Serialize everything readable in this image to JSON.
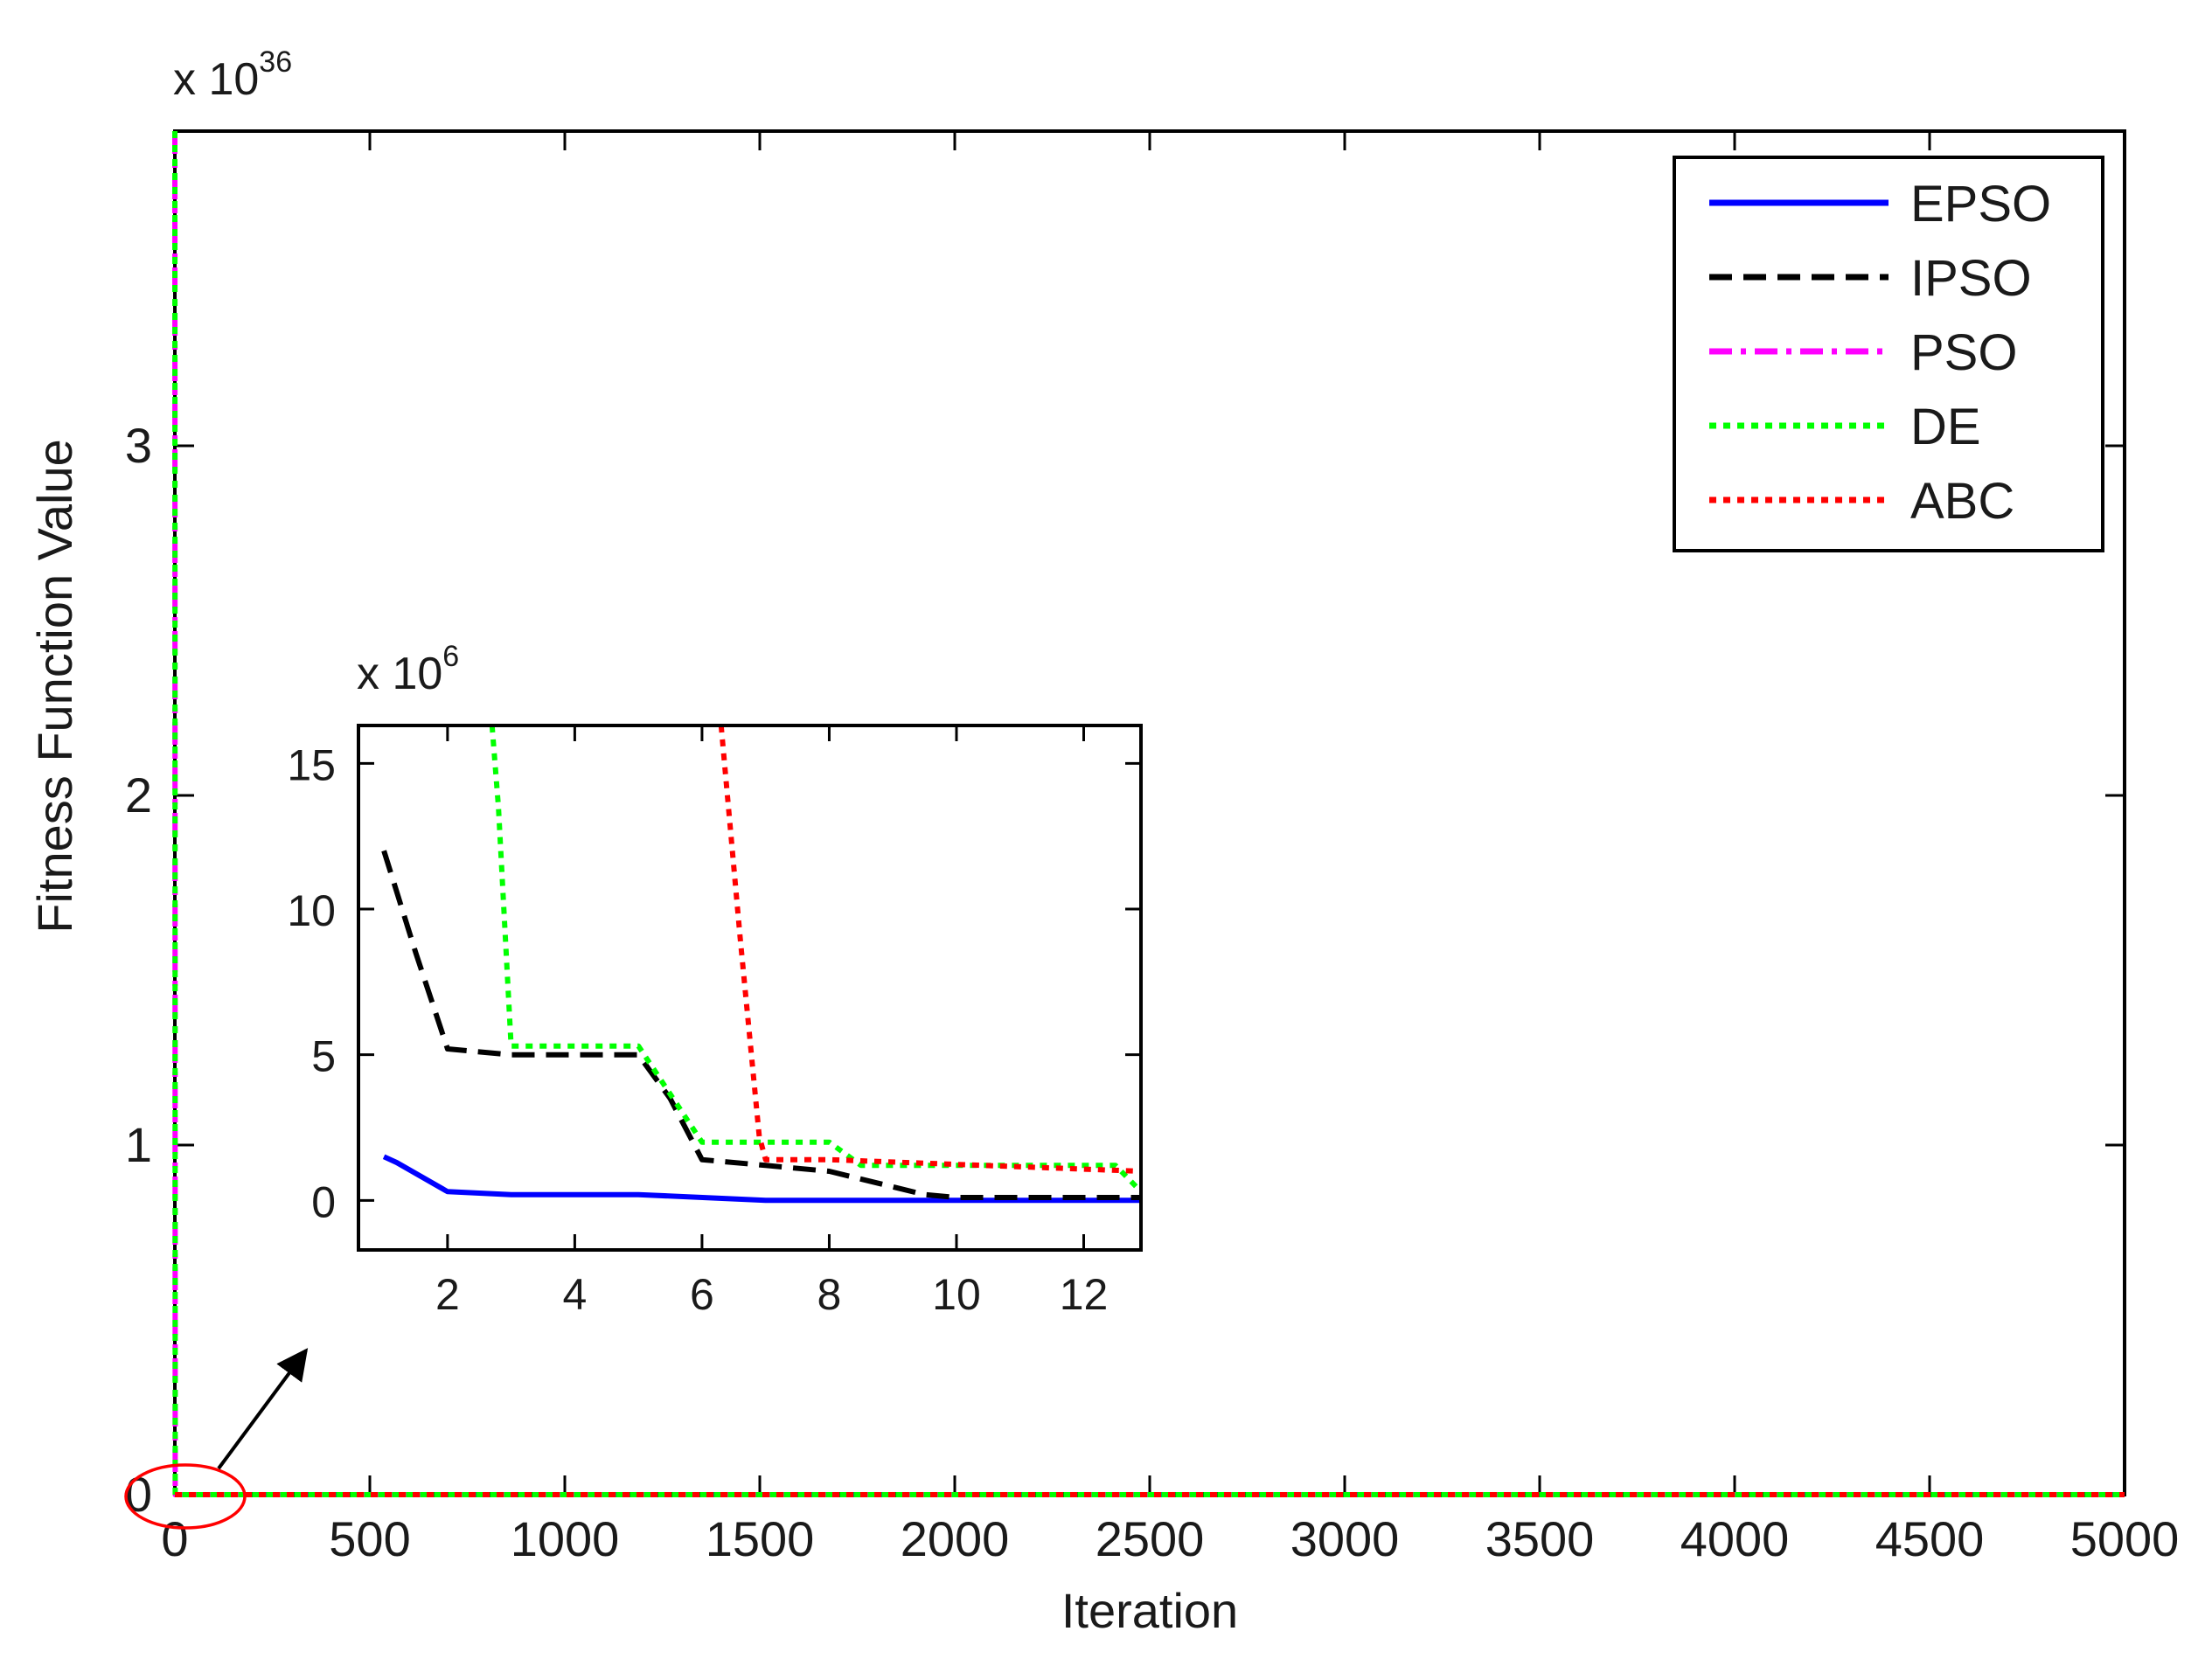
{
  "chart_data": [
    {
      "type": "line",
      "role": "main",
      "xlabel": "Iteration",
      "ylabel": "Fitness Function Value",
      "y_multiplier_base": "x 10",
      "y_multiplier_exponent": "36",
      "xlim": [
        0,
        5000
      ],
      "ylim": [
        0,
        3.9
      ],
      "x_ticks": [
        0,
        500,
        1000,
        1500,
        2000,
        2500,
        3000,
        3500,
        4000,
        4500,
        5000
      ],
      "x_tick_labels": [
        "0",
        "500",
        "1000",
        "1500",
        "2000",
        "2500",
        "3000",
        "3500",
        "4000",
        "4500",
        "5000"
      ],
      "y_ticks": [
        0,
        1,
        2,
        3
      ],
      "y_tick_labels": [
        "0",
        "1",
        "2",
        "3"
      ],
      "legend_position": "top-right",
      "series": [
        {
          "name": "EPSO",
          "color": "#0000ff",
          "style": "solid",
          "x": [
            0,
            5000
          ],
          "y": [
            0,
            0
          ]
        },
        {
          "name": "IPSO",
          "color": "#000000",
          "style": "dashed",
          "x": [
            0,
            5000
          ],
          "y": [
            0,
            0
          ]
        },
        {
          "name": "PSO",
          "color": "#ff00ff",
          "style": "dashdot",
          "x": [
            0,
            1,
            5000
          ],
          "y": [
            3.9,
            0,
            0
          ]
        },
        {
          "name": "DE",
          "color": "#00ff00",
          "style": "dotted",
          "x": [
            0,
            1,
            5000
          ],
          "y": [
            3.9,
            0,
            0
          ]
        },
        {
          "name": "ABC",
          "color": "#ff0000",
          "style": "dotted",
          "x": [
            0,
            5000
          ],
          "y": [
            0,
            0
          ]
        }
      ],
      "annotations": [
        "red ellipse around origin",
        "arrow pointing to zoomed inset"
      ]
    },
    {
      "type": "line",
      "role": "inset",
      "y_multiplier_base": "x 10",
      "y_multiplier_exponent": "6",
      "xlim": [
        0.6,
        12.9
      ],
      "ylim": [
        -1.7,
        16.3
      ],
      "x_ticks": [
        2,
        4,
        6,
        8,
        10,
        12
      ],
      "x_tick_labels": [
        "2",
        "4",
        "6",
        "8",
        "10",
        "12"
      ],
      "y_ticks": [
        0,
        5,
        10,
        15
      ],
      "y_tick_labels": [
        "0",
        "5",
        "10",
        "15"
      ],
      "series": [
        {
          "name": "EPSO",
          "color": "#0000ff",
          "style": "solid",
          "x": [
            1,
            1.2,
            2,
            3,
            5,
            7,
            9,
            12.9
          ],
          "y": [
            1.5,
            1.3,
            0.3,
            0.2,
            0.2,
            0.0,
            0.0,
            0.0
          ]
        },
        {
          "name": "IPSO",
          "color": "#000000",
          "style": "dashed",
          "x": [
            1,
            1.5,
            2,
            3,
            5,
            5.5,
            6,
            7,
            8,
            9.5,
            10,
            12.9
          ],
          "y": [
            12,
            8.5,
            5.2,
            5.0,
            5.0,
            3.5,
            1.4,
            1.2,
            1.0,
            0.2,
            0.1,
            0.1
          ]
        },
        {
          "name": "DE",
          "color": "#00ff00",
          "style": "dotted",
          "x": [
            2.7,
            2.8,
            3,
            4,
            5,
            6,
            8,
            8.5,
            12.5,
            12.9
          ],
          "y": [
            16.3,
            13.5,
            5.3,
            5.3,
            5.3,
            2.0,
            2.0,
            1.2,
            1.2,
            0.3
          ]
        },
        {
          "name": "ABC",
          "color": "#ff0000",
          "style": "dotted",
          "x": [
            6.3,
            6.6,
            6.9,
            7,
            8,
            12.9
          ],
          "y": [
            16.3,
            9.0,
            2.2,
            1.4,
            1.4,
            1.0
          ]
        }
      ]
    }
  ],
  "legend": {
    "items": [
      {
        "label": "EPSO",
        "color": "#0000ff",
        "style": "solid"
      },
      {
        "label": "IPSO",
        "color": "#000000",
        "style": "dashed"
      },
      {
        "label": "PSO",
        "color": "#ff00ff",
        "style": "dashdot"
      },
      {
        "label": "DE",
        "color": "#00ff00",
        "style": "dotted"
      },
      {
        "label": "ABC",
        "color": "#ff0000",
        "style": "dotted"
      }
    ]
  }
}
